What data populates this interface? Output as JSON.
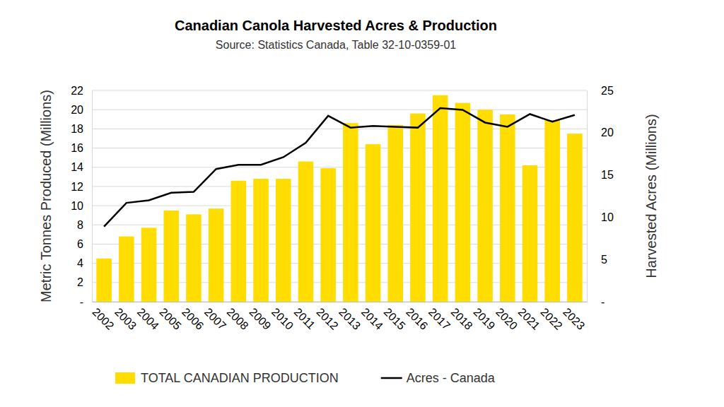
{
  "chart_data": {
    "type": "bar",
    "title": "Canadian Canola Harvested Acres & Production",
    "subtitle": "Source: Statistics Canada, Table 32-10-0359-01",
    "y_label": "Metric Tonnes Produced (Millions)",
    "y2_label": "Harvested Acres (Millions)",
    "categories": [
      "2002",
      "2003",
      "2004",
      "2005",
      "2006",
      "2007",
      "2008",
      "2009",
      "2010",
      "2011",
      "2012",
      "2013",
      "2014",
      "2015",
      "2016",
      "2017",
      "2018",
      "2019",
      "2020",
      "2021",
      "2022",
      "2023"
    ],
    "series": [
      {
        "name": "TOTAL CANADIAN PRODUCTION",
        "type": "bar",
        "color": "#ffdd00",
        "values": [
          4.5,
          6.8,
          7.7,
          9.5,
          9.1,
          9.7,
          12.6,
          12.8,
          12.8,
          14.6,
          13.9,
          18.6,
          16.4,
          18.4,
          19.6,
          21.5,
          20.7,
          20.0,
          19.5,
          14.2,
          18.9,
          17.5
        ]
      },
      {
        "name": "Acres - Canada",
        "type": "line",
        "color": "#000000",
        "axis": "y2",
        "values": [
          8.9,
          11.7,
          12.0,
          12.9,
          13.0,
          15.7,
          16.2,
          16.2,
          17.1,
          18.8,
          22.0,
          20.6,
          20.8,
          20.7,
          20.6,
          22.9,
          22.7,
          21.2,
          20.7,
          22.2,
          21.3,
          22.1
        ]
      }
    ],
    "ylim": [
      0,
      22
    ],
    "yticks": [
      {
        "value": 0,
        "label": "-"
      },
      2,
      4,
      6,
      8,
      10,
      12,
      14,
      16,
      18,
      20,
      22
    ],
    "y2lim": [
      0,
      25
    ],
    "y2ticks": [
      {
        "value": 0,
        "label": "-"
      },
      5,
      10,
      15,
      20,
      25
    ],
    "grid": true,
    "legend": "bottom"
  }
}
